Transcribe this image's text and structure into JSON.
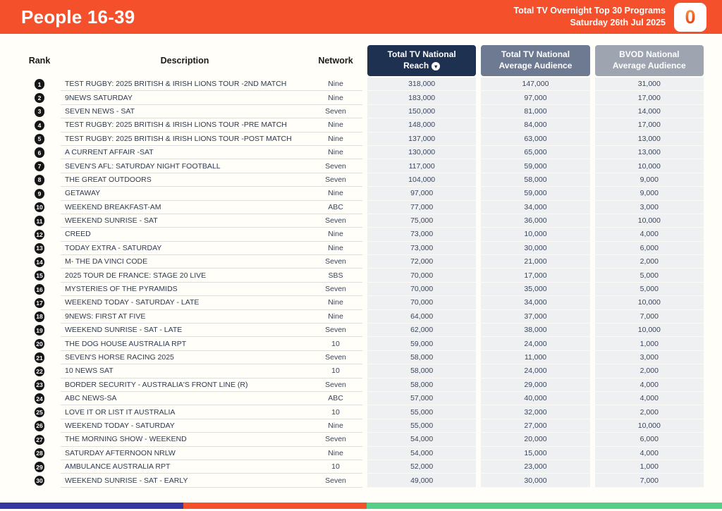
{
  "banner": {
    "title": "People 16-39",
    "subtitle_line1": "Total TV Overnight Top 30 Programs",
    "subtitle_line2": "Saturday 26th Jul 2025",
    "logo_glyph": "0"
  },
  "table": {
    "columns": {
      "rank": "Rank",
      "description": "Description",
      "network": "Network",
      "reach_line1": "Total TV National",
      "reach_line2": "Reach",
      "avg_line1": "Total TV National",
      "avg_line2": "Average Audience",
      "bvod_line1": "BVOD National",
      "bvod_line2": "Average Audience",
      "sort_glyph": "▼"
    },
    "rows": [
      {
        "rank": 1,
        "description": "TEST RUGBY: 2025 BRITISH & IRISH LIONS TOUR -2ND MATCH",
        "network": "Nine",
        "reach": "318,000",
        "avg": "147,000",
        "bvod": "31,000"
      },
      {
        "rank": 2,
        "description": "9NEWS SATURDAY",
        "network": "Nine",
        "reach": "183,000",
        "avg": "97,000",
        "bvod": "17,000"
      },
      {
        "rank": 3,
        "description": "SEVEN NEWS - SAT",
        "network": "Seven",
        "reach": "150,000",
        "avg": "81,000",
        "bvod": "14,000"
      },
      {
        "rank": 4,
        "description": "TEST RUGBY: 2025 BRITISH & IRISH LIONS TOUR -PRE MATCH",
        "network": "Nine",
        "reach": "148,000",
        "avg": "84,000",
        "bvod": "17,000"
      },
      {
        "rank": 5,
        "description": "TEST RUGBY: 2025 BRITISH & IRISH LIONS TOUR -POST MATCH",
        "network": "Nine",
        "reach": "137,000",
        "avg": "63,000",
        "bvod": "13,000"
      },
      {
        "rank": 6,
        "description": "A CURRENT AFFAIR -SAT",
        "network": "Nine",
        "reach": "130,000",
        "avg": "65,000",
        "bvod": "13,000"
      },
      {
        "rank": 7,
        "description": "SEVEN'S AFL: SATURDAY NIGHT FOOTBALL",
        "network": "Seven",
        "reach": "117,000",
        "avg": "59,000",
        "bvod": "10,000"
      },
      {
        "rank": 8,
        "description": "THE GREAT OUTDOORS",
        "network": "Seven",
        "reach": "104,000",
        "avg": "58,000",
        "bvod": "9,000"
      },
      {
        "rank": 9,
        "description": "GETAWAY",
        "network": "Nine",
        "reach": "97,000",
        "avg": "59,000",
        "bvod": "9,000"
      },
      {
        "rank": 10,
        "description": "WEEKEND BREAKFAST-AM",
        "network": "ABC",
        "reach": "77,000",
        "avg": "34,000",
        "bvod": "3,000"
      },
      {
        "rank": 11,
        "description": "WEEKEND SUNRISE - SAT",
        "network": "Seven",
        "reach": "75,000",
        "avg": "36,000",
        "bvod": "10,000"
      },
      {
        "rank": 12,
        "description": "CREED",
        "network": "Nine",
        "reach": "73,000",
        "avg": "10,000",
        "bvod": "4,000"
      },
      {
        "rank": 13,
        "description": "TODAY EXTRA - SATURDAY",
        "network": "Nine",
        "reach": "73,000",
        "avg": "30,000",
        "bvod": "6,000"
      },
      {
        "rank": 14,
        "description": "M- THE DA VINCI CODE",
        "network": "Seven",
        "reach": "72,000",
        "avg": "21,000",
        "bvod": "2,000"
      },
      {
        "rank": 15,
        "description": "2025 TOUR DE FRANCE: STAGE 20 LIVE",
        "network": "SBS",
        "reach": "70,000",
        "avg": "17,000",
        "bvod": "5,000"
      },
      {
        "rank": 16,
        "description": "MYSTERIES OF THE PYRAMIDS",
        "network": "Seven",
        "reach": "70,000",
        "avg": "35,000",
        "bvod": "5,000"
      },
      {
        "rank": 17,
        "description": "WEEKEND TODAY - SATURDAY - LATE",
        "network": "Nine",
        "reach": "70,000",
        "avg": "34,000",
        "bvod": "10,000"
      },
      {
        "rank": 18,
        "description": "9NEWS: FIRST AT FIVE",
        "network": "Nine",
        "reach": "64,000",
        "avg": "37,000",
        "bvod": "7,000"
      },
      {
        "rank": 19,
        "description": "WEEKEND SUNRISE - SAT - LATE",
        "network": "Seven",
        "reach": "62,000",
        "avg": "38,000",
        "bvod": "10,000"
      },
      {
        "rank": 20,
        "description": "THE DOG HOUSE AUSTRALIA RPT",
        "network": "10",
        "reach": "59,000",
        "avg": "24,000",
        "bvod": "1,000"
      },
      {
        "rank": 21,
        "description": "SEVEN'S HORSE RACING 2025",
        "network": "Seven",
        "reach": "58,000",
        "avg": "11,000",
        "bvod": "3,000"
      },
      {
        "rank": 22,
        "description": "10 NEWS SAT",
        "network": "10",
        "reach": "58,000",
        "avg": "24,000",
        "bvod": "2,000"
      },
      {
        "rank": 23,
        "description": "BORDER SECURITY - AUSTRALIA'S FRONT LINE (R)",
        "network": "Seven",
        "reach": "58,000",
        "avg": "29,000",
        "bvod": "4,000"
      },
      {
        "rank": 24,
        "description": "ABC NEWS-SA",
        "network": "ABC",
        "reach": "57,000",
        "avg": "40,000",
        "bvod": "4,000"
      },
      {
        "rank": 25,
        "description": "LOVE IT OR LIST IT AUSTRALIA",
        "network": "10",
        "reach": "55,000",
        "avg": "32,000",
        "bvod": "2,000"
      },
      {
        "rank": 26,
        "description": "WEEKEND TODAY - SATURDAY",
        "network": "Nine",
        "reach": "55,000",
        "avg": "27,000",
        "bvod": "10,000"
      },
      {
        "rank": 27,
        "description": "THE MORNING SHOW - WEEKEND",
        "network": "Seven",
        "reach": "54,000",
        "avg": "20,000",
        "bvod": "6,000"
      },
      {
        "rank": 28,
        "description": "SATURDAY AFTERNOON NRLW",
        "network": "Nine",
        "reach": "54,000",
        "avg": "15,000",
        "bvod": "4,000"
      },
      {
        "rank": 29,
        "description": "AMBULANCE AUSTRALIA RPT",
        "network": "10",
        "reach": "52,000",
        "avg": "23,000",
        "bvod": "1,000"
      },
      {
        "rank": 30,
        "description": "WEEKEND SUNRISE - SAT - EARLY",
        "network": "Seven",
        "reach": "49,000",
        "avg": "30,000",
        "bvod": "7,000"
      }
    ]
  },
  "colors": {
    "banner_orange": "#F4502B",
    "pill_dark_navy": "#1E3150",
    "pill_medium_slate": "#6E7A91",
    "pill_light_gray": "#9EA5B1",
    "value_cell_bg": "#EFF0F2",
    "rank_badge": "#161616"
  },
  "footer": {
    "segments": [
      {
        "color": "#3438A0",
        "width": "25.4%"
      },
      {
        "color": "#F4502B",
        "width": "25.4%"
      },
      {
        "color": "#55CE87",
        "width": "49.2%"
      }
    ]
  }
}
